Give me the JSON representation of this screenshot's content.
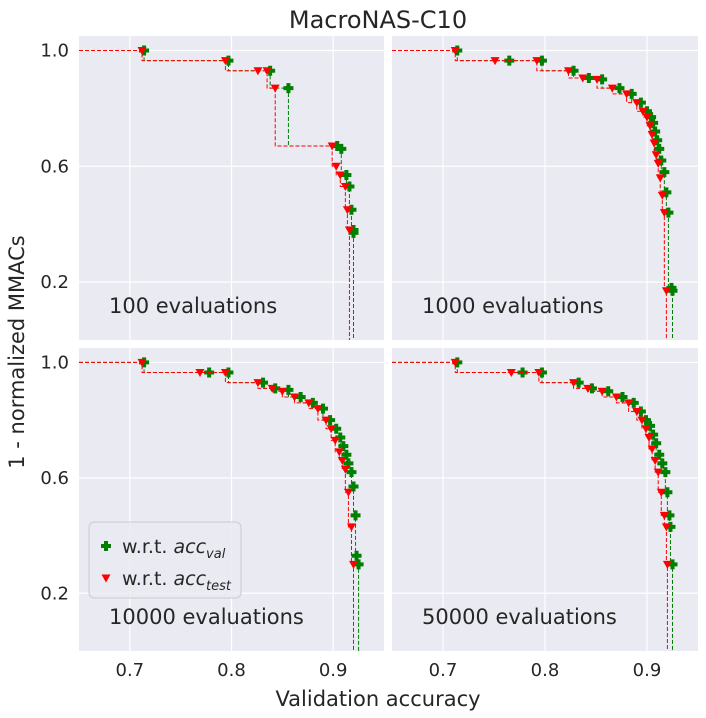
{
  "figure": {
    "title": "MacroNAS-C10",
    "xlabel": "Validation accuracy",
    "ylabel": "1 - normalized MMACs"
  },
  "legend": {
    "placement": "lower-left",
    "items": [
      {
        "prefix": "w.r.t. ",
        "symbol": "acc",
        "subscript": "val",
        "color": "#008000",
        "marker": "plus"
      },
      {
        "prefix": "w.r.t. ",
        "symbol": "acc",
        "subscript": "test",
        "color": "#ff0000",
        "marker": "triangle-down"
      }
    ]
  },
  "colors": {
    "background": "#eaeaf2",
    "grid": "#ffffff",
    "val": "#008000",
    "test": "#ff0000"
  },
  "chart_data": [
    {
      "type": "scatter",
      "annotation": "100 evaluations",
      "xlim": [
        0.65,
        0.95
      ],
      "ylim": [
        0.0,
        1.05
      ],
      "xticks": [
        "0.7",
        "0.8",
        "0.9"
      ],
      "yticks": [
        "1.0",
        "0.6",
        "0.2"
      ],
      "grid": true,
      "series": [
        {
          "key": "val",
          "x": [
            0.714,
            0.797,
            0.838,
            0.856,
            0.904,
            0.908,
            0.913,
            0.916,
            0.918,
            0.92,
            0.92
          ],
          "y": [
            1.0,
            0.965,
            0.93,
            0.87,
            0.67,
            0.66,
            0.57,
            0.53,
            0.45,
            0.38,
            0.37
          ]
        },
        {
          "key": "test",
          "x": [
            0.712,
            0.794,
            0.826,
            0.835,
            0.843,
            0.899,
            0.903,
            0.907,
            0.912,
            0.914,
            0.916
          ],
          "y": [
            1.0,
            0.965,
            0.93,
            0.93,
            0.87,
            0.67,
            0.6,
            0.57,
            0.53,
            0.45,
            0.38
          ]
        }
      ]
    },
    {
      "type": "scatter",
      "annotation": "1000 evaluations",
      "xlim": [
        0.65,
        0.95
      ],
      "ylim": [
        0.0,
        1.05
      ],
      "xticks": [
        "0.7",
        "0.8",
        "0.9"
      ],
      "yticks": [
        "1.0",
        "0.6",
        "0.2"
      ],
      "grid": true,
      "series": [
        {
          "key": "val",
          "x": [
            0.714,
            0.765,
            0.797,
            0.828,
            0.843,
            0.856,
            0.873,
            0.885,
            0.894,
            0.9,
            0.904,
            0.906,
            0.908,
            0.91,
            0.912,
            0.914,
            0.917,
            0.919,
            0.921,
            0.924,
            0.925
          ],
          "y": [
            1.0,
            0.965,
            0.965,
            0.93,
            0.905,
            0.9,
            0.87,
            0.85,
            0.82,
            0.79,
            0.77,
            0.75,
            0.72,
            0.69,
            0.66,
            0.62,
            0.58,
            0.51,
            0.44,
            0.18,
            0.17
          ]
        },
        {
          "key": "test",
          "x": [
            0.712,
            0.751,
            0.792,
            0.823,
            0.837,
            0.851,
            0.866,
            0.88,
            0.89,
            0.896,
            0.9,
            0.903,
            0.905,
            0.907,
            0.909,
            0.911,
            0.913,
            0.915,
            0.917,
            0.919
          ],
          "y": [
            1.0,
            0.965,
            0.965,
            0.93,
            0.905,
            0.9,
            0.87,
            0.85,
            0.82,
            0.79,
            0.77,
            0.74,
            0.71,
            0.68,
            0.64,
            0.61,
            0.56,
            0.5,
            0.44,
            0.17
          ]
        }
      ]
    },
    {
      "type": "scatter",
      "annotation": "10000 evaluations",
      "xlim": [
        0.65,
        0.95
      ],
      "ylim": [
        0.0,
        1.05
      ],
      "xticks": [
        "0.7",
        "0.8",
        "0.9"
      ],
      "yticks": [
        "1.0",
        "0.6",
        "0.2"
      ],
      "grid": true,
      "series": [
        {
          "key": "val",
          "x": [
            0.714,
            0.778,
            0.797,
            0.831,
            0.843,
            0.856,
            0.868,
            0.88,
            0.89,
            0.897,
            0.903,
            0.907,
            0.91,
            0.913,
            0.915,
            0.918,
            0.92,
            0.922,
            0.923,
            0.925
          ],
          "y": [
            1.0,
            0.965,
            0.965,
            0.93,
            0.91,
            0.905,
            0.88,
            0.86,
            0.84,
            0.8,
            0.77,
            0.74,
            0.71,
            0.68,
            0.65,
            0.62,
            0.57,
            0.47,
            0.33,
            0.3
          ]
        },
        {
          "key": "test",
          "x": [
            0.712,
            0.769,
            0.794,
            0.826,
            0.84,
            0.85,
            0.862,
            0.876,
            0.885,
            0.893,
            0.898,
            0.902,
            0.906,
            0.909,
            0.912,
            0.915,
            0.918,
            0.92
          ],
          "y": [
            1.0,
            0.965,
            0.965,
            0.93,
            0.91,
            0.9,
            0.88,
            0.86,
            0.84,
            0.8,
            0.77,
            0.73,
            0.69,
            0.66,
            0.63,
            0.55,
            0.43,
            0.3
          ]
        }
      ]
    },
    {
      "type": "scatter",
      "annotation": "50000 evaluations",
      "xlim": [
        0.65,
        0.95
      ],
      "ylim": [
        0.0,
        1.05
      ],
      "xticks": [
        "0.7",
        "0.8",
        "0.9"
      ],
      "yticks": [
        "1.0",
        "0.6",
        "0.2"
      ],
      "grid": true,
      "series": [
        {
          "key": "val",
          "x": [
            0.714,
            0.778,
            0.797,
            0.833,
            0.846,
            0.862,
            0.876,
            0.887,
            0.894,
            0.899,
            0.903,
            0.906,
            0.909,
            0.912,
            0.915,
            0.918,
            0.92,
            0.922,
            0.923,
            0.925
          ],
          "y": [
            1.0,
            0.965,
            0.965,
            0.93,
            0.91,
            0.9,
            0.88,
            0.86,
            0.83,
            0.8,
            0.78,
            0.75,
            0.72,
            0.68,
            0.65,
            0.62,
            0.55,
            0.47,
            0.43,
            0.3
          ]
        },
        {
          "key": "test",
          "x": [
            0.712,
            0.767,
            0.794,
            0.828,
            0.842,
            0.856,
            0.87,
            0.882,
            0.89,
            0.895,
            0.899,
            0.902,
            0.905,
            0.908,
            0.911,
            0.914,
            0.917,
            0.919,
            0.92
          ],
          "y": [
            1.0,
            0.965,
            0.965,
            0.93,
            0.91,
            0.9,
            0.88,
            0.86,
            0.83,
            0.8,
            0.77,
            0.74,
            0.7,
            0.66,
            0.62,
            0.55,
            0.47,
            0.43,
            0.3
          ]
        }
      ]
    }
  ]
}
